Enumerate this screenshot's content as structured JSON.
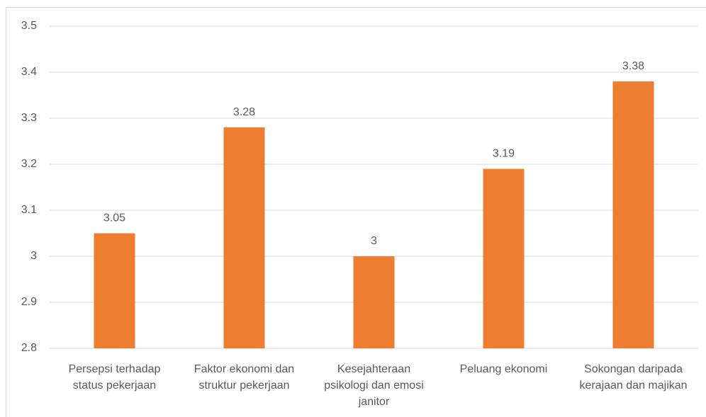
{
  "chart_data": {
    "type": "bar",
    "categories": [
      "Persepsi terhadap status pekerjaan",
      "Faktor ekonomi dan struktur pekerjaan",
      "Kesejahteraan psikologi dan emosi janitor",
      "Peluang ekonomi",
      "Sokongan daripada kerajaan dan majikan"
    ],
    "values": [
      3.05,
      3.28,
      3,
      3.19,
      3.38
    ],
    "color": "#ed7d31",
    "ylim": [
      2.8,
      3.5
    ],
    "yticks": [
      2.8,
      2.9,
      3,
      3.1,
      3.2,
      3.3,
      3.4,
      3.5
    ],
    "grid": true
  }
}
